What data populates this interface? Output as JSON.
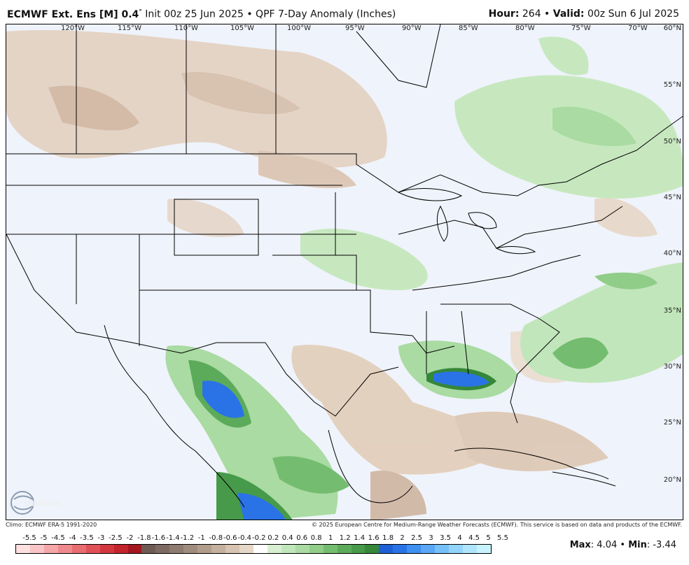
{
  "header": {
    "model": "ECMWF Ext. Ens [M] 0.4",
    "degree": "°",
    "init": " Init 00z 25 Jun 2025 • QPF 7-Day Anomaly (Inches)",
    "hour_label": "Hour:",
    "hour_value": " 264 • ",
    "valid_label": "Valid:",
    "valid_value": " 00z Sun 6 Jul 2025"
  },
  "map": {
    "lon_labels": [
      "120°W",
      "115°W",
      "110°W",
      "105°W",
      "100°W",
      "95°W",
      "90°W",
      "85°W",
      "80°W",
      "75°W",
      "70°W"
    ],
    "lat_labels": [
      "60°N",
      "55°N",
      "50°N",
      "45°N",
      "40°N",
      "35°N",
      "30°N",
      "25°N",
      "20°N"
    ]
  },
  "footer": {
    "climo": "Climo: ECMWF ERA-5 1991-2020",
    "copyright": "© 2025 European Centre for Medium-Range Weather Forecasts (ECMWF). This service is based on data and products of the ECMWF."
  },
  "colorbar": {
    "labels": [
      "-5.5",
      "-5",
      "-4.5",
      "-4",
      "-3.5",
      "-3",
      "-2.5",
      "-2",
      "-1.8",
      "-1.6",
      "-1.4",
      "-1.2",
      "-1",
      "-0.8",
      "-0.6",
      "-0.4",
      "-0.2",
      "0.2",
      "0.4",
      "0.6",
      "0.8",
      "1",
      "1.2",
      "1.4",
      "1.6",
      "1.8",
      "2",
      "2.5",
      "3",
      "3.5",
      "4",
      "4.5",
      "5",
      "5.5"
    ],
    "colors": [
      "#fde0e0",
      "#f9c4c6",
      "#f4a6a8",
      "#ee8a8d",
      "#e86d71",
      "#df5157",
      "#d3373e",
      "#c3232b",
      "#a4161e",
      "#6f5a54",
      "#7d6a62",
      "#8e7b70",
      "#a08c7e",
      "#b29d8d",
      "#c4b09e",
      "#d6c3b1",
      "#e7d7c6",
      "#ffffff",
      "#d8efd2",
      "#c2e6bb",
      "#a9dba2",
      "#8fcd88",
      "#74bd70",
      "#5cab5b",
      "#479a49",
      "#35873a",
      "#1f5fd6",
      "#2a73e6",
      "#3d8ff0",
      "#5aa8f5",
      "#76c0f8",
      "#92d4fb",
      "#aee5fd",
      "#c8f2fd"
    ]
  },
  "stats": {
    "max_label": "Max",
    "max_value": ": 4.04 • ",
    "min_label": "Min",
    "min_value": ": -3.44"
  }
}
